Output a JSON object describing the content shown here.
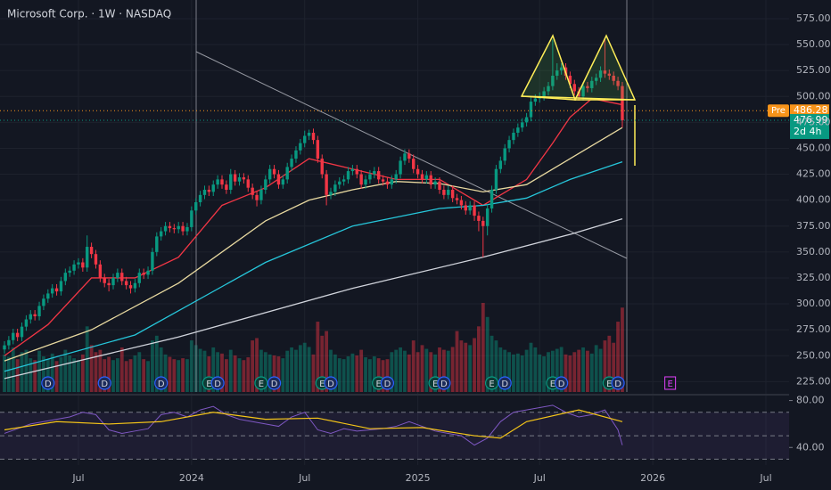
{
  "chart_data": {
    "type": "candlestick",
    "title": "Microsoft Corp. · 1W · NASDAQ",
    "categories": [
      null,
      null,
      null,
      null,
      null,
      null,
      null,
      null,
      null,
      null,
      null,
      null,
      null,
      null,
      null,
      null,
      null,
      "Jul",
      null,
      null,
      null,
      null,
      null,
      null,
      null,
      null,
      null,
      null,
      null,
      null,
      null,
      null,
      null,
      null,
      null,
      null,
      null,
      null,
      null,
      null,
      null,
      null,
      null,
      "2024",
      null,
      null,
      null,
      null,
      null,
      null,
      null,
      null,
      null,
      null,
      null,
      null,
      null,
      null,
      null,
      null,
      null,
      null,
      null,
      null,
      null,
      null,
      null,
      null,
      null,
      "Jul",
      null,
      null,
      null,
      null,
      null,
      null,
      null,
      null,
      null,
      null,
      null,
      null,
      null,
      null,
      null,
      null,
      null,
      null,
      null,
      null,
      null,
      null,
      null,
      null,
      null,
      "2025",
      null,
      null,
      null,
      null,
      null,
      null,
      null,
      null,
      null,
      null,
      null,
      null,
      null,
      null,
      null,
      null,
      null,
      null,
      null,
      null,
      null,
      null,
      null,
      null,
      null,
      null,
      null,
      "Jul",
      null,
      null,
      null,
      null,
      null,
      null,
      null,
      null,
      null,
      null,
      null,
      null,
      null,
      null,
      null,
      null,
      null,
      null,
      null,
      null,
      null,
      null,
      null,
      null,
      null,
      "2026",
      null,
      null,
      null,
      null,
      null,
      null,
      null,
      null,
      null,
      null,
      null,
      null,
      null,
      null,
      null,
      null,
      null,
      null,
      null,
      null,
      null,
      null,
      null,
      null,
      null,
      "Jul"
    ],
    "open": [
      256,
      260,
      265,
      272,
      268,
      278,
      285,
      290,
      288,
      298,
      305,
      310,
      315,
      312,
      322,
      330,
      332,
      338,
      340,
      335,
      355,
      348,
      338,
      325,
      320,
      318,
      325,
      330,
      322,
      318,
      315,
      320,
      330,
      328,
      332,
      350,
      365,
      370,
      375,
      373,
      372,
      375,
      370,
      374,
      390,
      398,
      405,
      410,
      408,
      415,
      420,
      415,
      410,
      425,
      418,
      422,
      420,
      412,
      405,
      400,
      410,
      420,
      430,
      425,
      415,
      420,
      432,
      440,
      448,
      455,
      462,
      465,
      458,
      440,
      425,
      405,
      408,
      415,
      418,
      420,
      428,
      430,
      425,
      415,
      420,
      425,
      428,
      420,
      418,
      415,
      420,
      425,
      438,
      445,
      440,
      430,
      425,
      420,
      424,
      415,
      418,
      410,
      405,
      410,
      402,
      400,
      395,
      390,
      395,
      385,
      380,
      375,
      392,
      410,
      430,
      438,
      450,
      458,
      465,
      470,
      475,
      480,
      495,
      498,
      500,
      505,
      510,
      520,
      525,
      528,
      520,
      512,
      505,
      500,
      510,
      508,
      515,
      518,
      525,
      522,
      520,
      515,
      510,
      null,
      null,
      null,
      null,
      null,
      null,
      null,
      null,
      null,
      null,
      null,
      null,
      null,
      null,
      null,
      null,
      null,
      null,
      null,
      null,
      null,
      null,
      null,
      null,
      null,
      null,
      null,
      null,
      null,
      null,
      null,
      null,
      null
    ],
    "high": [
      264,
      269,
      276,
      276,
      282,
      289,
      294,
      294,
      302,
      309,
      314,
      319,
      319,
      326,
      334,
      336,
      342,
      344,
      344,
      366,
      359,
      352,
      342,
      329,
      324,
      329,
      334,
      334,
      326,
      322,
      324,
      334,
      334,
      336,
      354,
      369,
      374,
      379,
      379,
      377,
      379,
      379,
      378,
      394,
      402,
      409,
      414,
      414,
      419,
      424,
      424,
      419,
      430,
      429,
      426,
      426,
      424,
      416,
      409,
      414,
      424,
      434,
      434,
      429,
      424,
      436,
      444,
      452,
      459,
      467,
      468,
      469,
      462,
      444,
      429,
      412,
      419,
      422,
      424,
      432,
      434,
      434,
      429,
      424,
      429,
      432,
      432,
      424,
      422,
      424,
      429,
      442,
      449,
      449,
      444,
      434,
      429,
      428,
      428,
      422,
      422,
      414,
      414,
      414,
      406,
      404,
      399,
      399,
      399,
      389,
      384,
      396,
      414,
      434,
      442,
      454,
      462,
      469,
      474,
      479,
      484,
      499,
      502,
      504,
      509,
      514,
      555,
      532,
      532,
      532,
      524,
      516,
      509,
      514,
      514,
      519,
      522,
      529,
      555,
      526,
      524,
      519,
      514,
      null,
      null,
      null,
      null,
      null,
      null,
      null,
      null,
      null,
      null,
      null,
      null,
      null,
      null,
      null,
      null,
      null,
      null,
      null,
      null,
      null,
      null,
      null,
      null,
      null,
      null,
      null,
      null,
      null,
      null,
      null,
      null,
      null
    ],
    "low": [
      252,
      256,
      261,
      264,
      264,
      274,
      281,
      284,
      284,
      294,
      301,
      306,
      308,
      308,
      318,
      326,
      328,
      334,
      331,
      331,
      344,
      334,
      321,
      316,
      312,
      314,
      321,
      318,
      314,
      310,
      311,
      316,
      324,
      324,
      328,
      346,
      361,
      366,
      369,
      368,
      368,
      366,
      366,
      370,
      386,
      394,
      401,
      404,
      404,
      411,
      411,
      406,
      406,
      414,
      414,
      416,
      408,
      401,
      394,
      396,
      406,
      416,
      421,
      411,
      411,
      416,
      428,
      436,
      444,
      451,
      458,
      454,
      436,
      421,
      395,
      401,
      404,
      411,
      414,
      416,
      424,
      421,
      411,
      411,
      416,
      421,
      416,
      414,
      411,
      411,
      416,
      421,
      434,
      436,
      426,
      421,
      416,
      416,
      411,
      411,
      406,
      401,
      401,
      398,
      396,
      391,
      386,
      386,
      380,
      370,
      345,
      366,
      388,
      406,
      426,
      434,
      446,
      454,
      461,
      466,
      471,
      476,
      491,
      494,
      496,
      501,
      506,
      516,
      521,
      516,
      508,
      501,
      496,
      496,
      504,
      504,
      511,
      514,
      518,
      516,
      511,
      506,
      470,
      null,
      null,
      null,
      null,
      null,
      null,
      null,
      null,
      null,
      null,
      null,
      null,
      null,
      null,
      null,
      null,
      null,
      null,
      null,
      null,
      null,
      null,
      null,
      null,
      null,
      null,
      null,
      null,
      null,
      null,
      null,
      null,
      null
    ],
    "close": [
      260,
      265,
      272,
      268,
      278,
      285,
      290,
      288,
      298,
      305,
      310,
      315,
      312,
      322,
      330,
      332,
      338,
      340,
      335,
      355,
      348,
      338,
      325,
      320,
      318,
      325,
      330,
      322,
      318,
      315,
      320,
      330,
      328,
      332,
      350,
      365,
      370,
      375,
      373,
      372,
      375,
      370,
      374,
      390,
      398,
      405,
      410,
      408,
      415,
      420,
      415,
      410,
      425,
      418,
      422,
      420,
      412,
      405,
      400,
      410,
      420,
      430,
      425,
      415,
      420,
      432,
      440,
      448,
      455,
      462,
      465,
      458,
      440,
      425,
      405,
      408,
      415,
      418,
      420,
      428,
      430,
      425,
      415,
      420,
      425,
      428,
      420,
      418,
      415,
      420,
      425,
      438,
      445,
      440,
      430,
      425,
      420,
      424,
      415,
      418,
      410,
      405,
      410,
      402,
      400,
      395,
      390,
      395,
      385,
      380,
      375,
      392,
      410,
      430,
      438,
      450,
      458,
      465,
      470,
      475,
      480,
      495,
      498,
      500,
      505,
      510,
      520,
      525,
      528,
      520,
      512,
      505,
      500,
      510,
      508,
      515,
      518,
      525,
      522,
      520,
      515,
      510,
      476.99,
      null,
      null,
      null,
      null,
      null,
      null,
      null,
      null,
      null,
      null,
      null,
      null,
      null,
      null,
      null,
      null,
      null,
      null,
      null,
      null,
      null,
      null,
      null,
      null,
      null,
      null,
      null,
      null,
      null,
      null,
      null,
      null,
      null
    ],
    "volume": [
      80,
      75,
      95,
      70,
      85,
      90,
      72,
      68,
      88,
      76,
      70,
      82,
      66,
      74,
      90,
      78,
      72,
      68,
      80,
      140,
      100,
      85,
      90,
      70,
      75,
      68,
      72,
      95,
      66,
      70,
      78,
      85,
      70,
      66,
      110,
      120,
      95,
      80,
      75,
      70,
      68,
      72,
      70,
      110,
      100,
      92,
      88,
      76,
      95,
      85,
      82,
      70,
      90,
      78,
      72,
      68,
      74,
      110,
      115,
      90,
      85,
      80,
      78,
      76,
      72,
      88,
      95,
      90,
      100,
      105,
      96,
      80,
      150,
      120,
      130,
      90,
      80,
      72,
      70,
      76,
      82,
      78,
      90,
      74,
      70,
      76,
      72,
      68,
      70,
      85,
      90,
      95,
      88,
      80,
      110,
      85,
      100,
      92,
      85,
      80,
      95,
      90,
      88,
      96,
      130,
      110,
      105,
      100,
      115,
      140,
      190,
      160,
      120,
      110,
      95,
      90,
      85,
      80,
      82,
      78,
      90,
      105,
      95,
      80,
      76,
      85,
      88,
      92,
      96,
      80,
      78,
      85,
      90,
      95,
      88,
      82,
      100,
      92,
      110,
      120,
      105,
      150,
      180,
      null,
      null,
      null,
      null,
      null,
      null,
      null,
      null,
      null,
      null,
      null,
      null,
      null,
      null,
      null,
      null,
      null,
      null,
      null,
      null,
      null,
      null,
      null,
      null,
      null,
      null,
      null,
      null,
      null,
      null,
      null,
      null,
      null
    ],
    "up_color": "#089981",
    "down_color": "#f23645",
    "ylim": [
      215,
      593
    ],
    "yticks": [
      {
        "value": 225,
        "label": "225.00"
      },
      {
        "value": 250,
        "label": "250.00"
      },
      {
        "value": 275,
        "label": "275.00"
      },
      {
        "value": 300,
        "label": "300.00"
      },
      {
        "value": 325,
        "label": "325.00"
      },
      {
        "value": 350,
        "label": "350.00"
      },
      {
        "value": 375,
        "label": "375.00"
      },
      {
        "value": 400,
        "label": "400.00"
      },
      {
        "value": 425,
        "label": "425.00"
      },
      {
        "value": 450,
        "label": "450.00"
      },
      {
        "value": 475,
        "label": "475.00"
      },
      {
        "value": 500,
        "label": "500.00"
      },
      {
        "value": 525,
        "label": "525.00"
      },
      {
        "value": 550,
        "label": "550.00"
      },
      {
        "value": 575,
        "label": "575.00"
      }
    ],
    "grid": true,
    "moving_averages": [
      {
        "color": "#f23645",
        "x": [
          0,
          10,
          20,
          30,
          40,
          50,
          60,
          70,
          80,
          90,
          100,
          110,
          120,
          126,
          130,
          135,
          142
        ],
        "values": [
          250,
          280,
          325,
          325,
          345,
          395,
          412,
          440,
          430,
          420,
          420,
          395,
          420,
          455,
          480,
          498,
          492
        ]
      },
      {
        "color": "#e8d9a0",
        "x": [
          0,
          20,
          40,
          60,
          70,
          80,
          90,
          100,
          110,
          120,
          130,
          142
        ],
        "values": [
          245,
          275,
          320,
          380,
          400,
          410,
          418,
          416,
          408,
          415,
          440,
          470
        ]
      },
      {
        "color": "#26c6da",
        "x": [
          0,
          30,
          60,
          80,
          100,
          110,
          120,
          130,
          142
        ],
        "values": [
          235,
          270,
          340,
          375,
          392,
          395,
          402,
          420,
          437
        ]
      },
      {
        "color": "#d1d4dc",
        "x": [
          0,
          40,
          80,
          110,
          130,
          142
        ],
        "values": [
          228,
          268,
          315,
          345,
          367,
          382
        ]
      }
    ],
    "pre_market": {
      "label": "Pre",
      "value": 486.28,
      "color": "#f7931a"
    },
    "countdown": "2d 4h",
    "events": [
      {
        "label": "D",
        "index": 10
      },
      {
        "label": "D",
        "index": 23
      },
      {
        "label": "D",
        "index": 36
      },
      {
        "label": "E",
        "index": 47
      },
      {
        "label": "D",
        "index": 49
      },
      {
        "label": "E",
        "index": 59
      },
      {
        "label": "D",
        "index": 62
      },
      {
        "label": "E",
        "index": 73
      },
      {
        "label": "D",
        "index": 75
      },
      {
        "label": "E",
        "index": 86
      },
      {
        "label": "D",
        "index": 88
      },
      {
        "label": "E",
        "index": 99
      },
      {
        "label": "D",
        "index": 101
      },
      {
        "label": "E",
        "index": 112
      },
      {
        "label": "D",
        "index": 115
      },
      {
        "label": "E",
        "index": 126
      },
      {
        "label": "D",
        "index": 128
      },
      {
        "label": "E",
        "index": 139
      },
      {
        "label": "D",
        "index": 141
      },
      {
        "label": "E",
        "index": 153
      }
    ],
    "rsi": {
      "ylim": [
        25,
        85
      ],
      "yticks": [
        {
          "value": 80,
          "label": "80.00"
        },
        {
          "value": 40,
          "label": "40.00"
        }
      ],
      "bands": [
        70,
        50,
        30
      ],
      "color": "#7e57c2",
      "x": [
        0,
        3,
        6,
        9,
        12,
        15,
        18,
        21,
        24,
        27,
        30,
        33,
        36,
        39,
        42,
        45,
        48,
        51,
        54,
        57,
        60,
        63,
        66,
        69,
        72,
        75,
        78,
        81,
        84,
        87,
        90,
        93,
        96,
        99,
        102,
        105,
        108,
        111,
        114,
        117,
        120,
        123,
        126,
        129,
        132,
        135,
        138,
        141,
        142
      ],
      "values": [
        52,
        56,
        60,
        62,
        64,
        66,
        70,
        68,
        55,
        52,
        54,
        56,
        68,
        70,
        66,
        72,
        75,
        68,
        64,
        62,
        60,
        58,
        66,
        70,
        55,
        52,
        56,
        54,
        55,
        56,
        58,
        62,
        58,
        54,
        52,
        50,
        42,
        48,
        62,
        70,
        72,
        74,
        76,
        70,
        66,
        68,
        72,
        55,
        42
      ],
      "ma_color": "#f5c518",
      "ma_x": [
        0,
        12,
        24,
        36,
        48,
        60,
        72,
        84,
        96,
        108,
        114,
        120,
        132,
        142
      ],
      "ma_values": [
        55,
        62,
        60,
        62,
        70,
        64,
        65,
        56,
        57,
        50,
        48,
        62,
        72,
        62
      ]
    }
  }
}
